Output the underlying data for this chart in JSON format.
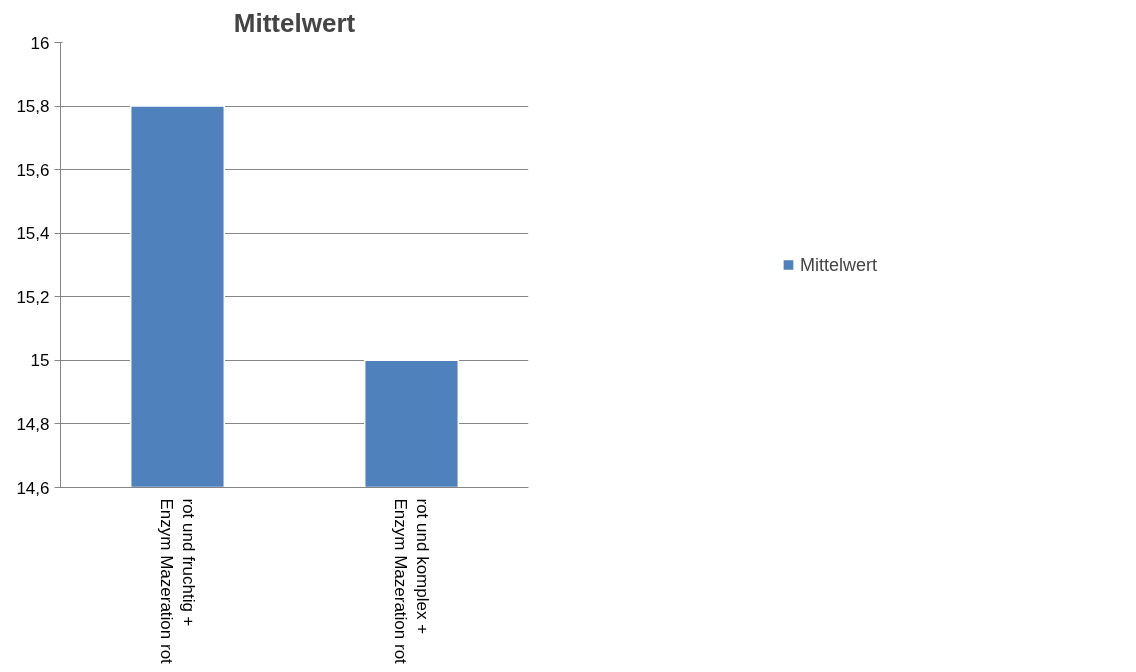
{
  "chart_data": {
    "type": "bar",
    "title": "Mittelwert",
    "categories": [
      "rot und fruchtig +\nEnzym Mazeration rot",
      "rot und komplex +\nEnzym Mazeration rot"
    ],
    "series": [
      {
        "name": "Mittelwert",
        "color": "#4f81bd",
        "values": [
          15.8,
          15.0
        ]
      }
    ],
    "ylim": [
      14.6,
      16
    ],
    "yticks": [
      {
        "value": 14.6,
        "label": "14,6"
      },
      {
        "value": 14.8,
        "label": "14,8"
      },
      {
        "value": 15,
        "label": "15"
      },
      {
        "value": 15.2,
        "label": "15,2"
      },
      {
        "value": 15.4,
        "label": "15,4"
      },
      {
        "value": 15.6,
        "label": "15,6"
      },
      {
        "value": 15.8,
        "label": "15,8"
      },
      {
        "value": 16,
        "label": "16"
      }
    ],
    "grid": "y",
    "legend": "right"
  }
}
